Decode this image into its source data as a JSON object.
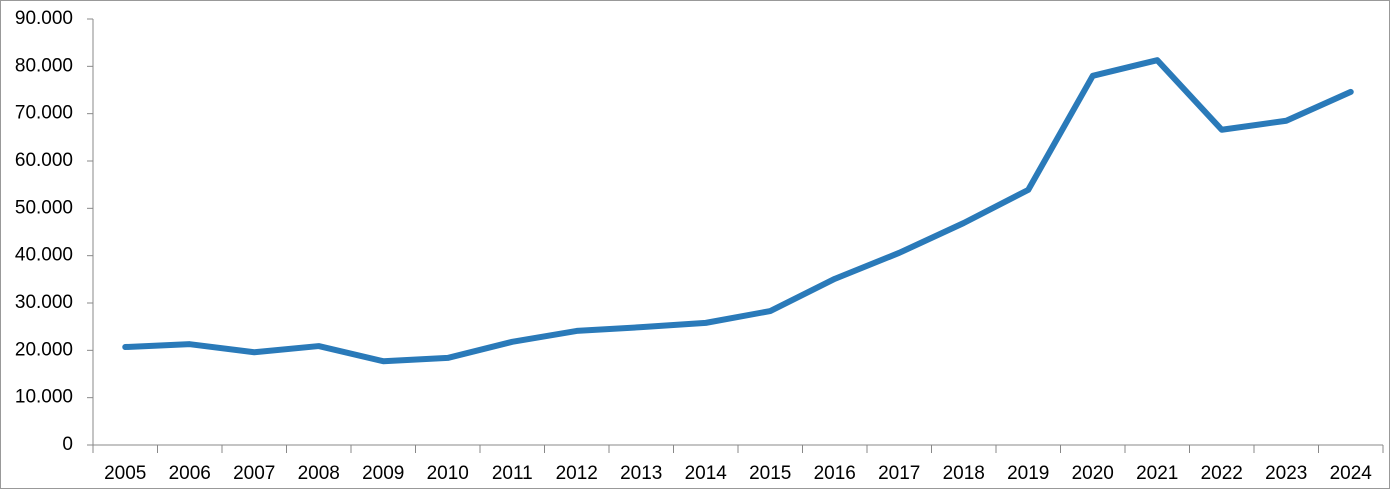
{
  "chart_data": {
    "type": "line",
    "categories": [
      "2005",
      "2006",
      "2007",
      "2008",
      "2009",
      "2010",
      "2011",
      "2012",
      "2013",
      "2014",
      "2015",
      "2016",
      "2017",
      "2018",
      "2019",
      "2020",
      "2021",
      "2022",
      "2023",
      "2024"
    ],
    "series": [
      {
        "color": "#2a7ab9",
        "values": [
          20700,
          21300,
          19600,
          20900,
          17700,
          18400,
          21800,
          24100,
          24900,
          25800,
          28300,
          35100,
          40600,
          46900,
          53900,
          78000,
          81300,
          66600,
          68500,
          74600
        ]
      }
    ],
    "ylim": [
      0,
      90000
    ],
    "yticks": [
      0,
      {
        "value": 10000,
        "label": "10.000"
      },
      {
        "value": 20000,
        "label": "20.000"
      },
      {
        "value": 30000,
        "label": "30.000"
      },
      {
        "value": 40000,
        "label": "40.000"
      },
      {
        "value": 50000,
        "label": "50.000"
      },
      {
        "value": 60000,
        "label": "60.000"
      },
      {
        "value": 70000,
        "label": "70.000"
      },
      {
        "value": 80000,
        "label": "80.000"
      },
      {
        "value": 90000,
        "label": "90.000"
      }
    ],
    "grid": false
  }
}
